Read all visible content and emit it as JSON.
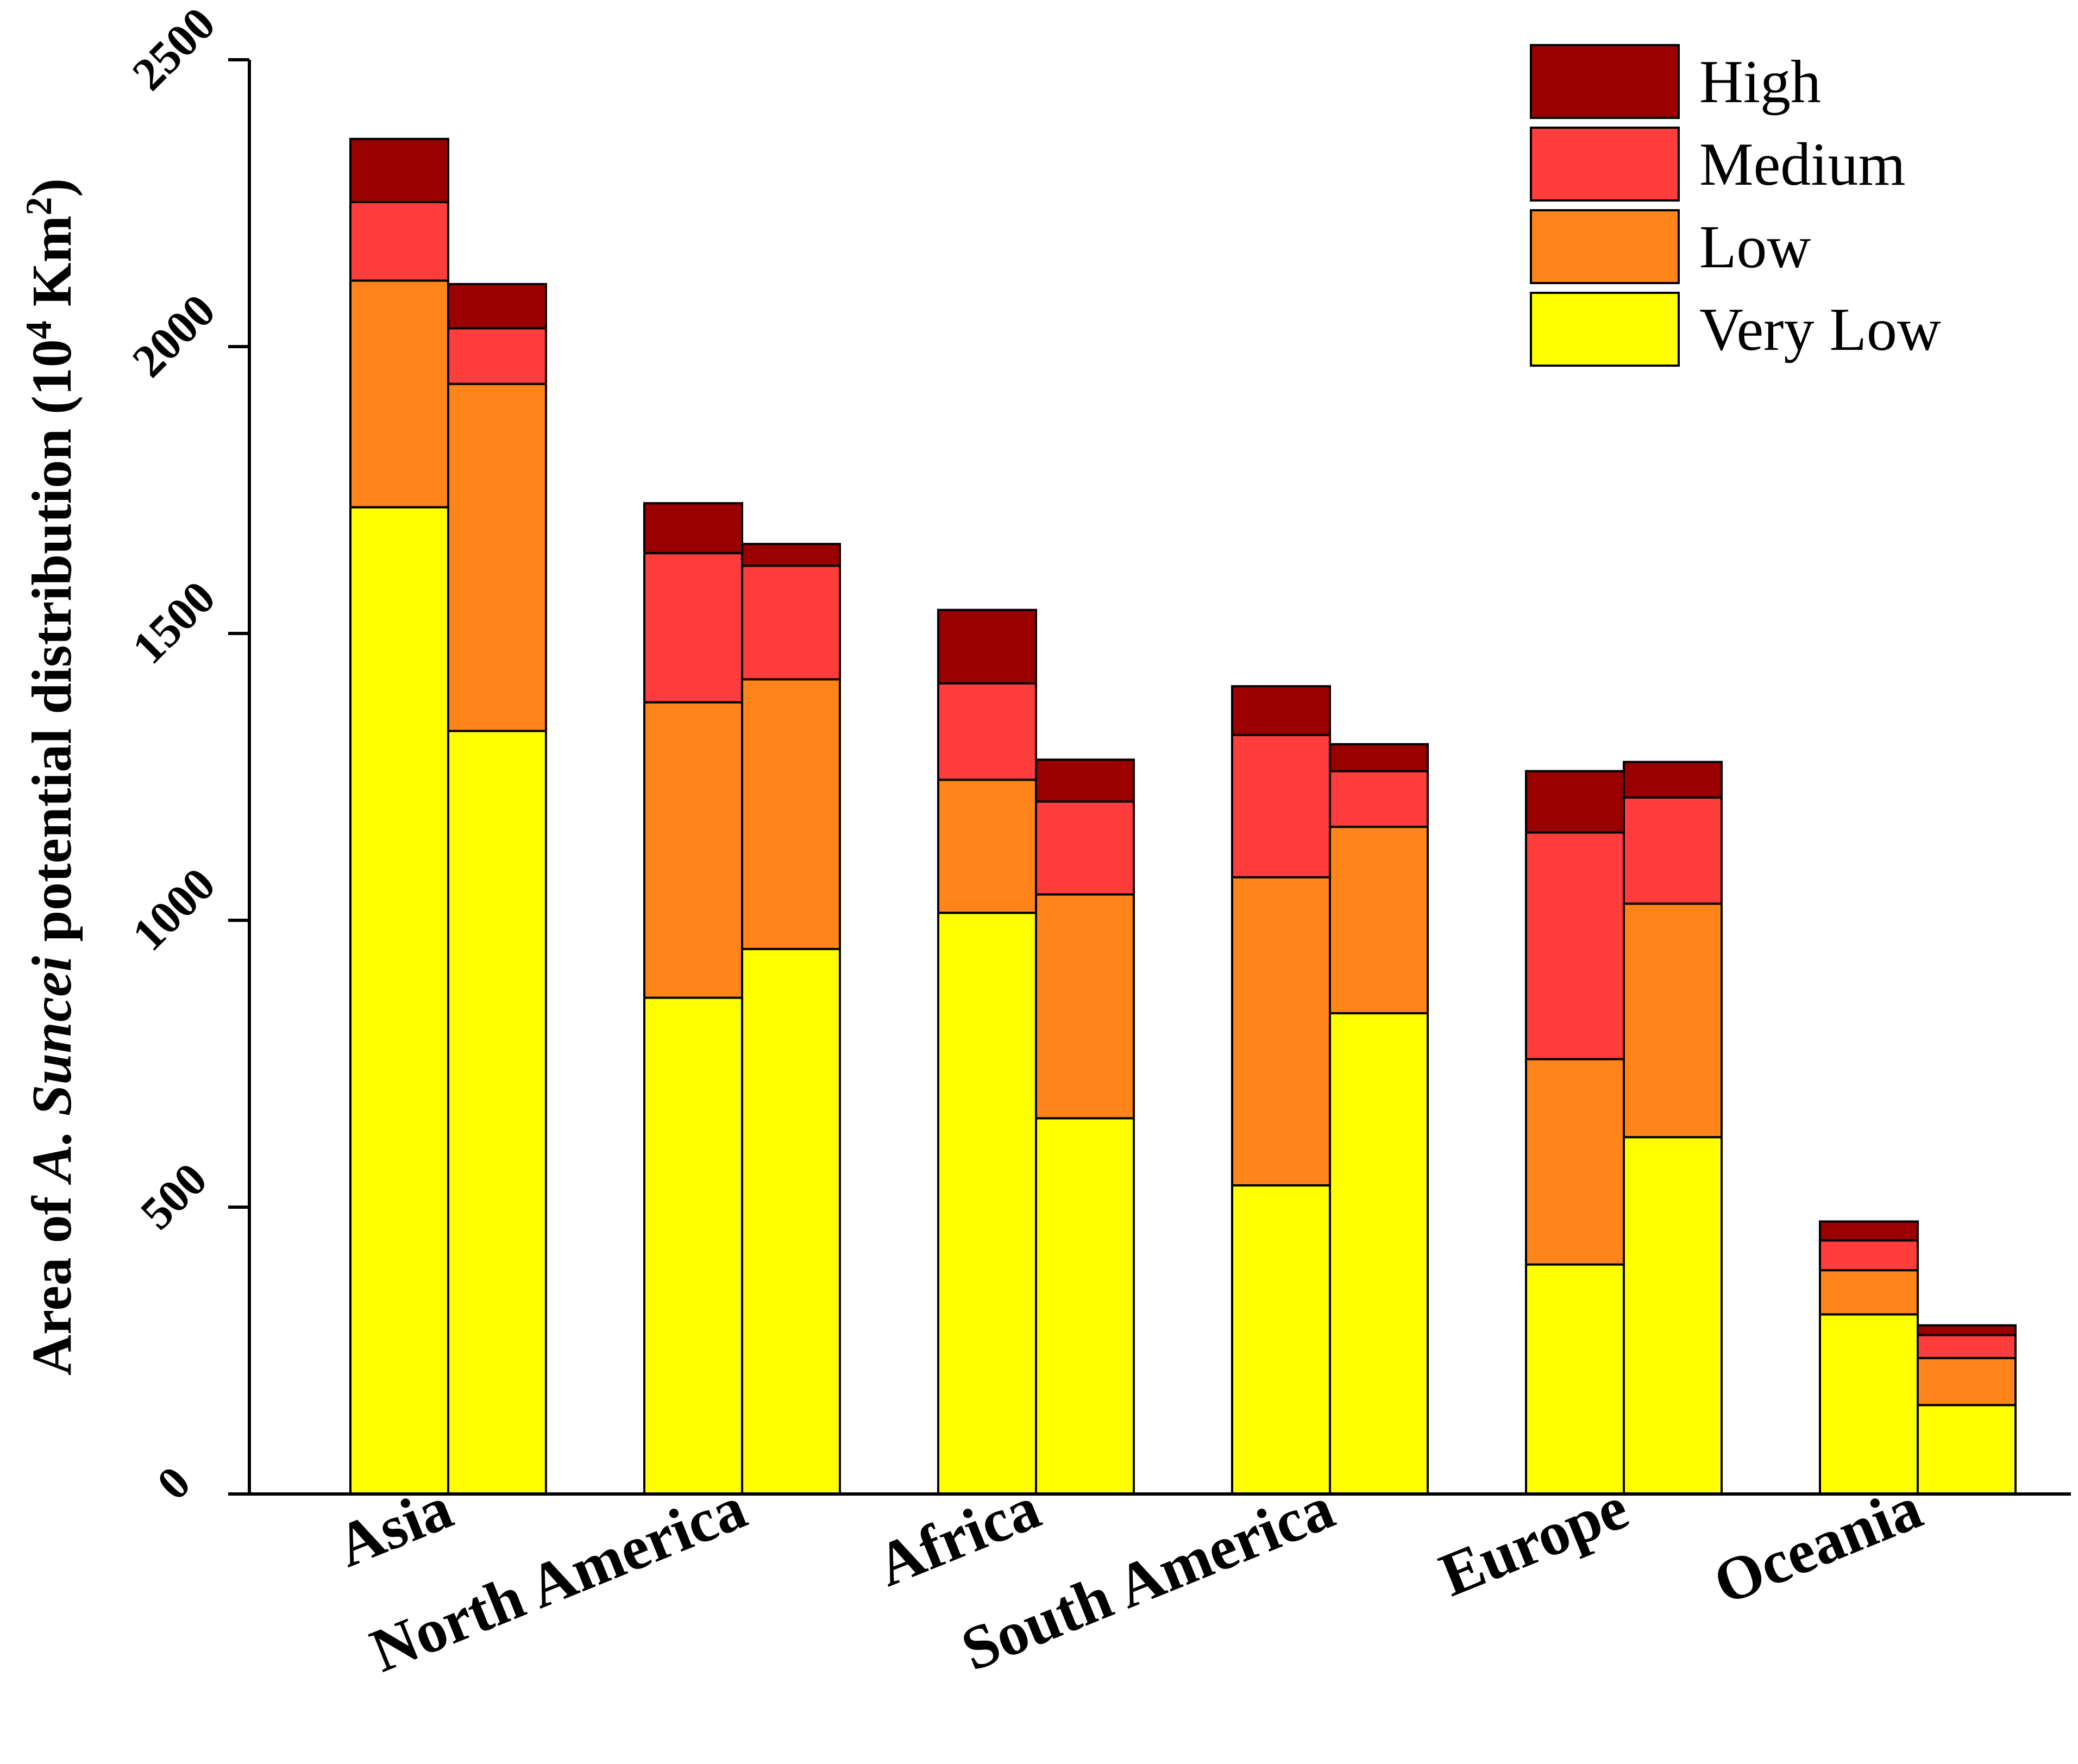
{
  "chart_data": {
    "type": "bar",
    "stacked": true,
    "bars_per_category": 2,
    "categories": [
      "Asia",
      "North America",
      "Africa",
      "South America",
      "Europe",
      "Oceania"
    ],
    "stack_order": [
      "Very Low",
      "Low",
      "Medium",
      "High"
    ],
    "series": [
      {
        "name": "Very Low",
        "color": "#ffff00",
        "values": [
          [
            1720,
            1330
          ],
          [
            865,
            950
          ],
          [
            1013,
            655
          ],
          [
            538,
            838
          ],
          [
            400,
            622
          ],
          [
            313,
            155
          ]
        ]
      },
      {
        "name": "Low",
        "color": "#ff851b",
        "values": [
          [
            395,
            605
          ],
          [
            515,
            470
          ],
          [
            232,
            390
          ],
          [
            537,
            325
          ],
          [
            358,
            407
          ],
          [
            77,
            82
          ]
        ]
      },
      {
        "name": "Medium",
        "color": "#ff3d3d",
        "values": [
          [
            137,
            97
          ],
          [
            260,
            198
          ],
          [
            168,
            162
          ],
          [
            248,
            97
          ],
          [
            395,
            185
          ],
          [
            52,
            40
          ]
        ]
      },
      {
        "name": "High",
        "color": "#9a0000",
        "values": [
          [
            110,
            77
          ],
          [
            87,
            38
          ],
          [
            128,
            73
          ],
          [
            85,
            47
          ],
          [
            107,
            62
          ],
          [
            33,
            17
          ]
        ]
      }
    ],
    "ylim": [
      0,
      2500
    ],
    "yticks": [
      0,
      500,
      1000,
      1500,
      2000,
      2500
    ],
    "ytick_labels": [
      "0",
      "500",
      "1000",
      "1500",
      "2000",
      "2500"
    ],
    "ylabel": {
      "prefix": "Area of ",
      "species": "A. Suncei",
      "middle": " potential distribution  (10",
      "sup1": "4",
      "unit": " Km",
      "sup2": "2",
      "suffix": ")"
    },
    "xlabel": "",
    "legend": {
      "position": "top-right",
      "order": [
        "High",
        "Medium",
        "Low",
        "Very Low"
      ]
    },
    "grid": false
  }
}
